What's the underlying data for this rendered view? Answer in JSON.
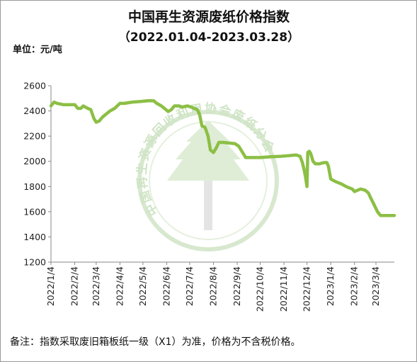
{
  "chart_data": {
    "type": "line",
    "title": "中国再生资源废纸价格指数",
    "subtitle": "（2022.01.04-2023.03.28）",
    "unit_label": "单位：元/吨",
    "footnote": "备注：指数采取废旧箱板纸一级（X1）为准，价格为不含税价格。",
    "watermark": "中国再生资源回收利用协会废纸分会",
    "ylim": [
      1200,
      2600
    ],
    "yticks": [
      1200,
      1400,
      1600,
      1800,
      2000,
      2200,
      2400,
      2600
    ],
    "xticks": [
      "2022/1/4",
      "2022/2/4",
      "2022/3/4",
      "2022/4/4",
      "2022/5/4",
      "2022/6/4",
      "2022/7/4",
      "2022/8/4",
      "2022/9/4",
      "2022/10/4",
      "2022/11/4",
      "2022/12/4",
      "2023/1/4",
      "2023/2/4",
      "2023/3/4"
    ],
    "grid": false,
    "colors": {
      "line": "#8cbf45",
      "axis": "#888888",
      "watermark": "#b7d7a8"
    },
    "series": [
      {
        "values": [
          [
            "2022-01-04",
            2440
          ],
          [
            "2022-01-08",
            2470
          ],
          [
            "2022-01-12",
            2460
          ],
          [
            "2022-01-20",
            2450
          ],
          [
            "2022-02-04",
            2450
          ],
          [
            "2022-02-08",
            2420
          ],
          [
            "2022-02-12",
            2420
          ],
          [
            "2022-02-15",
            2440
          ],
          [
            "2022-02-21",
            2420
          ],
          [
            "2022-02-25",
            2410
          ],
          [
            "2022-03-01",
            2340
          ],
          [
            "2022-03-04",
            2310
          ],
          [
            "2022-03-08",
            2320
          ],
          [
            "2022-03-12",
            2350
          ],
          [
            "2022-03-18",
            2380
          ],
          [
            "2022-03-22",
            2400
          ],
          [
            "2022-03-28",
            2420
          ],
          [
            "2022-04-04",
            2460
          ],
          [
            "2022-04-10",
            2460
          ],
          [
            "2022-04-20",
            2470
          ],
          [
            "2022-05-01",
            2475
          ],
          [
            "2022-05-10",
            2480
          ],
          [
            "2022-05-18",
            2480
          ],
          [
            "2022-05-22",
            2460
          ],
          [
            "2022-05-28",
            2440
          ],
          [
            "2022-06-02",
            2415
          ],
          [
            "2022-06-06",
            2395
          ],
          [
            "2022-06-10",
            2410
          ],
          [
            "2022-06-14",
            2440
          ],
          [
            "2022-06-20",
            2440
          ],
          [
            "2022-06-24",
            2430
          ],
          [
            "2022-07-01",
            2440
          ],
          [
            "2022-07-06",
            2430
          ],
          [
            "2022-07-10",
            2420
          ],
          [
            "2022-07-14",
            2410
          ],
          [
            "2022-07-17",
            2370
          ],
          [
            "2022-07-20",
            2280
          ],
          [
            "2022-07-24",
            2270
          ],
          [
            "2022-07-28",
            2200
          ],
          [
            "2022-07-31",
            2090
          ],
          [
            "2022-08-04",
            2070
          ],
          [
            "2022-08-08",
            2110
          ],
          [
            "2022-08-11",
            2150
          ],
          [
            "2022-08-16",
            2150
          ],
          [
            "2022-08-24",
            2145
          ],
          [
            "2022-09-01",
            2140
          ],
          [
            "2022-09-06",
            2120
          ],
          [
            "2022-09-10",
            2080
          ],
          [
            "2022-09-15",
            2030
          ],
          [
            "2022-09-25",
            2030
          ],
          [
            "2022-10-04",
            2030
          ],
          [
            "2022-10-15",
            2035
          ],
          [
            "2022-10-31",
            2040
          ],
          [
            "2022-11-10",
            2045
          ],
          [
            "2022-11-20",
            2050
          ],
          [
            "2022-11-25",
            2040
          ],
          [
            "2022-11-28",
            1990
          ],
          [
            "2022-11-30",
            1940
          ],
          [
            "2022-12-02",
            1880
          ],
          [
            "2022-12-04",
            1800
          ],
          [
            "2022-12-05",
            2070
          ],
          [
            "2022-12-07",
            2080
          ],
          [
            "2022-12-09",
            2060
          ],
          [
            "2022-12-12",
            2000
          ],
          [
            "2022-12-15",
            1980
          ],
          [
            "2022-12-20",
            1980
          ],
          [
            "2022-12-26",
            1990
          ],
          [
            "2022-12-30",
            1990
          ],
          [
            "2023-01-01",
            1960
          ],
          [
            "2023-01-04",
            1860
          ],
          [
            "2023-01-10",
            1840
          ],
          [
            "2023-01-18",
            1820
          ],
          [
            "2023-01-24",
            1800
          ],
          [
            "2023-02-01",
            1780
          ],
          [
            "2023-02-04",
            1760
          ],
          [
            "2023-02-08",
            1770
          ],
          [
            "2023-02-12",
            1780
          ],
          [
            "2023-02-18",
            1770
          ],
          [
            "2023-02-22",
            1750
          ],
          [
            "2023-02-26",
            1700
          ],
          [
            "2023-03-02",
            1650
          ],
          [
            "2023-03-06",
            1600
          ],
          [
            "2023-03-10",
            1570
          ],
          [
            "2023-03-16",
            1570
          ],
          [
            "2023-03-28",
            1570
          ]
        ]
      }
    ]
  }
}
